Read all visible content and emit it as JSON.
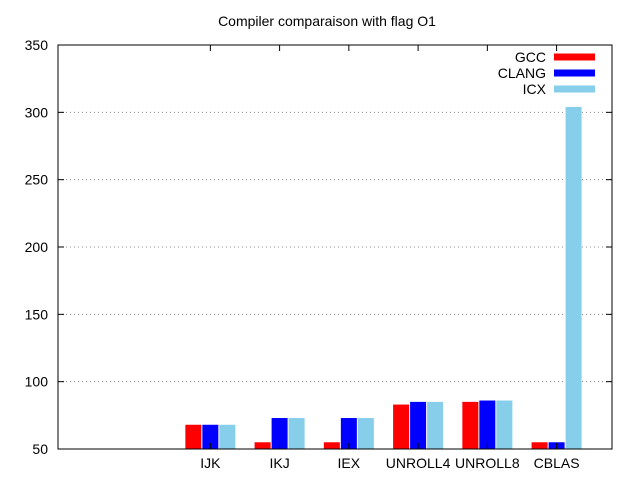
{
  "chart_data": {
    "type": "bar",
    "title": "Compiler comparaison with flag O1",
    "xlabel": "",
    "ylabel": "",
    "ylim": [
      50,
      350
    ],
    "yticks": [
      50,
      100,
      150,
      200,
      250,
      300,
      350
    ],
    "grid": "horizontal dotted",
    "legend_position": "top-right",
    "categories": [
      "IJK",
      "IKJ",
      "IEX",
      "UNROLL4",
      "UNROLL8",
      "CBLAS"
    ],
    "series": [
      {
        "name": "GCC",
        "color": "#ff0000",
        "values": [
          68,
          55,
          55,
          83,
          85,
          55
        ]
      },
      {
        "name": "CLANG",
        "color": "#0000ff",
        "values": [
          68,
          73,
          73,
          85,
          86,
          55
        ]
      },
      {
        "name": "ICX",
        "color": "#87ceeb",
        "values": [
          68,
          73,
          73,
          85,
          86,
          304
        ]
      }
    ]
  }
}
